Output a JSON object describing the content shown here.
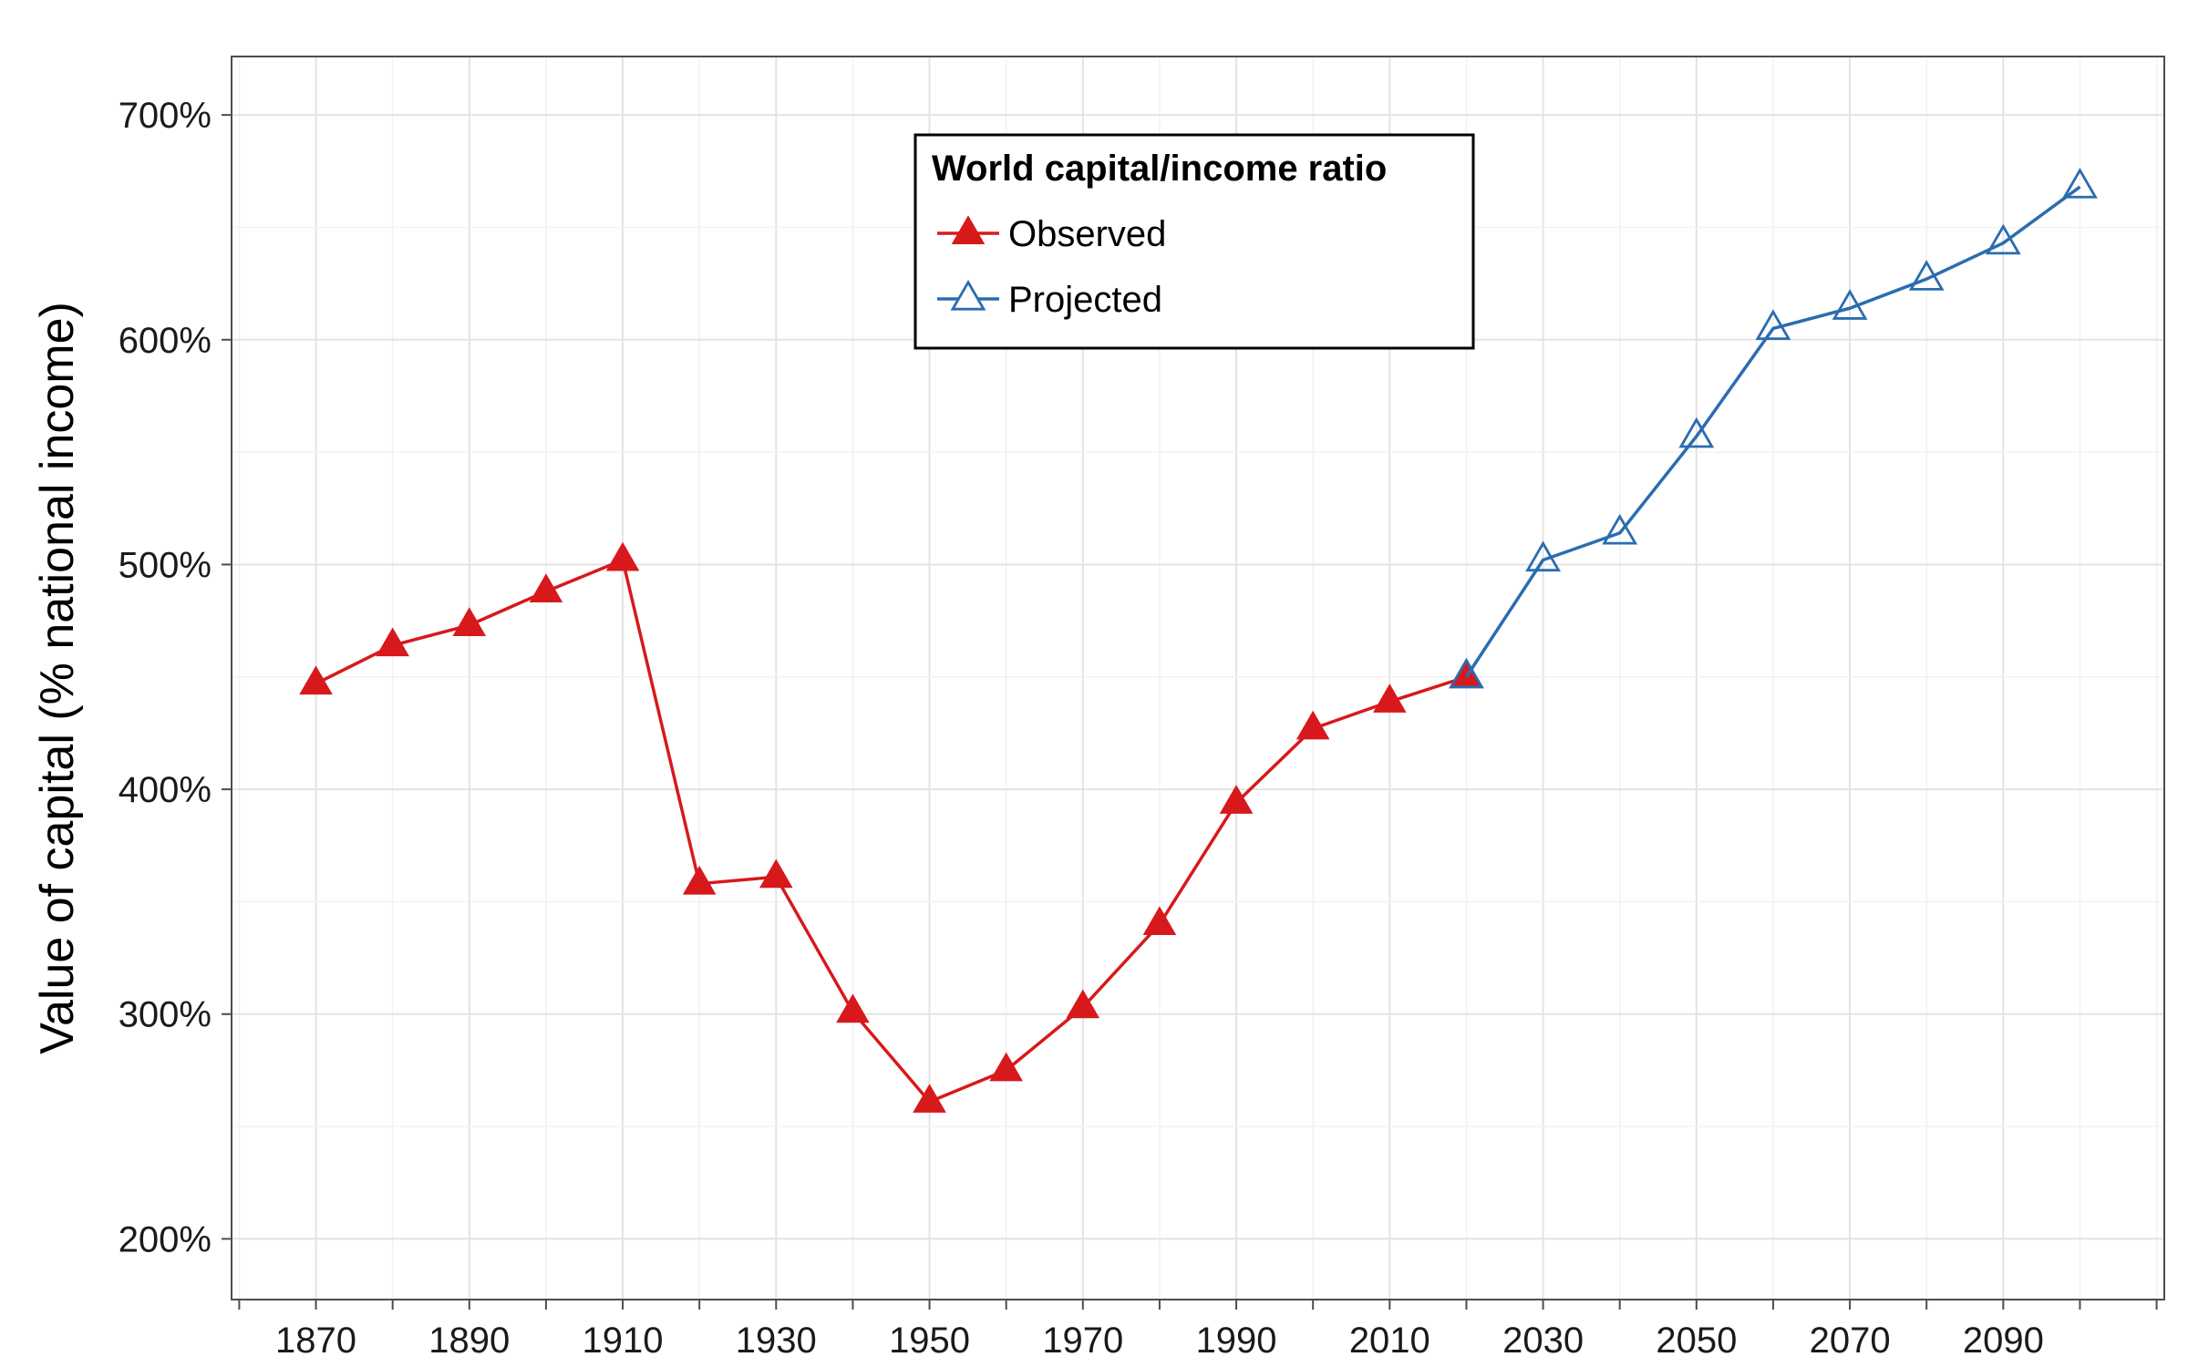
{
  "chart_data": {
    "type": "line",
    "title": "",
    "xlabel": "",
    "ylabel": "Value of capital (% national income)",
    "xlim": [
      1859,
      2111
    ],
    "ylim": [
      173,
      726
    ],
    "x_ticks": [
      1870,
      1890,
      1910,
      1930,
      1950,
      1970,
      1990,
      2010,
      2030,
      2050,
      2070,
      2090
    ],
    "x_tick_labels": [
      "1870",
      "1890",
      "1910",
      "1930",
      "1950",
      "1970",
      "1990",
      "2010",
      "2030",
      "2050",
      "2070",
      "2090"
    ],
    "y_ticks": [
      200,
      300,
      400,
      500,
      600,
      700
    ],
    "y_tick_labels": [
      "200%",
      "300%",
      "400%",
      "500%",
      "600%",
      "700%"
    ],
    "grid": true,
    "legend": {
      "title": "World capital/income ratio",
      "position": "top-center"
    },
    "series": [
      {
        "name": "Observed",
        "color": "#d7191c",
        "marker": "filled-triangle",
        "x": [
          1870,
          1880,
          1890,
          1900,
          1910,
          1920,
          1930,
          1940,
          1950,
          1960,
          1970,
          1980,
          1990,
          2000,
          2010,
          2020
        ],
        "values": [
          447,
          464,
          473,
          488,
          502,
          358,
          361,
          301,
          261,
          275,
          303,
          340,
          394,
          427,
          439,
          450
        ]
      },
      {
        "name": "Projected",
        "color": "#2b6cb0",
        "marker": "open-triangle",
        "x": [
          2020,
          2030,
          2040,
          2050,
          2060,
          2070,
          2080,
          2090,
          2100
        ],
        "values": [
          450,
          502,
          514,
          557,
          605,
          614,
          627,
          643,
          668
        ]
      }
    ]
  }
}
